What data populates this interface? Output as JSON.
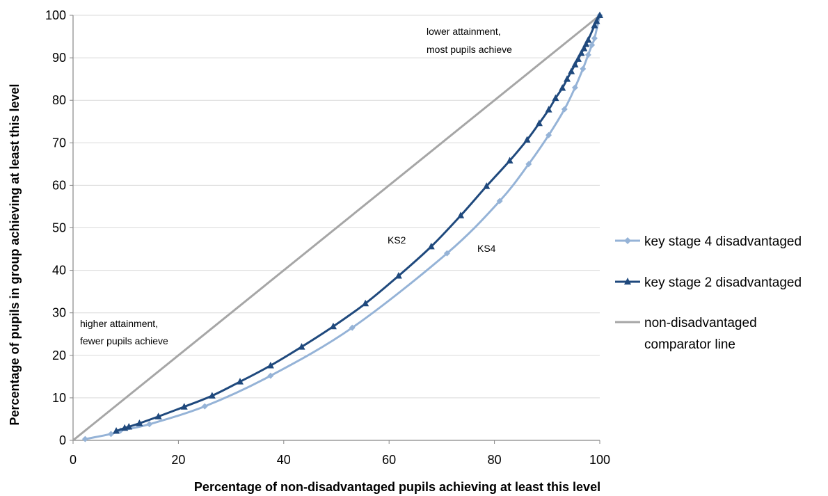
{
  "chart_data": {
    "type": "line",
    "title": "",
    "xlabel": "Percentage of non-disadvantaged pupils achieving at least this level",
    "ylabel": "Percentage of pupils in group achieving at least this level",
    "xlim": [
      0,
      100
    ],
    "ylim": [
      0,
      100
    ],
    "x_ticks": [
      "0",
      "20",
      "40",
      "60",
      "80",
      "100"
    ],
    "y_ticks": [
      "0",
      "10",
      "20",
      "30",
      "40",
      "50",
      "60",
      "70",
      "80",
      "90",
      "100"
    ],
    "grid": "horizontal",
    "legend_position": "right",
    "series": [
      {
        "name": "key stage 4 disadvantaged",
        "color": "#95B3D7",
        "marker": "diamond",
        "points": [
          [
            2.3,
            0.3
          ],
          [
            7.2,
            1.5
          ],
          [
            9.0,
            2.3
          ],
          [
            14.5,
            3.8
          ],
          [
            25.0,
            8.0
          ],
          [
            37.5,
            15.2
          ],
          [
            53.0,
            26.5
          ],
          [
            71.0,
            44.0
          ],
          [
            81.0,
            56.3
          ],
          [
            86.5,
            65.0
          ],
          [
            90.3,
            71.8
          ],
          [
            93.3,
            77.9
          ],
          [
            95.3,
            83.0
          ],
          [
            96.8,
            87.4
          ],
          [
            97.8,
            90.7
          ],
          [
            98.5,
            93.0
          ],
          [
            99.0,
            94.6
          ],
          [
            100,
            100
          ]
        ]
      },
      {
        "name": "key stage 2 disadvantaged",
        "color": "#1F497D",
        "marker": "triangle",
        "points": [
          [
            8.2,
            2.2
          ],
          [
            9.8,
            2.9
          ],
          [
            10.6,
            3.2
          ],
          [
            12.6,
            4.0
          ],
          [
            16.2,
            5.6
          ],
          [
            21.1,
            7.9
          ],
          [
            26.4,
            10.5
          ],
          [
            31.7,
            13.8
          ],
          [
            37.5,
            17.6
          ],
          [
            43.4,
            22.0
          ],
          [
            49.4,
            26.8
          ],
          [
            55.5,
            32.2
          ],
          [
            61.8,
            38.7
          ],
          [
            68.0,
            45.6
          ],
          [
            73.6,
            52.9
          ],
          [
            78.5,
            59.8
          ],
          [
            82.9,
            65.8
          ],
          [
            86.2,
            70.7
          ],
          [
            88.5,
            74.6
          ],
          [
            90.3,
            77.8
          ],
          [
            91.6,
            80.5
          ],
          [
            92.9,
            82.9
          ],
          [
            93.8,
            85.0
          ],
          [
            94.6,
            86.8
          ],
          [
            95.3,
            88.4
          ],
          [
            95.9,
            89.7
          ],
          [
            96.5,
            91.1
          ],
          [
            97.0,
            92.2
          ],
          [
            97.4,
            93.2
          ],
          [
            97.8,
            94.2
          ],
          [
            99.0,
            97.6
          ],
          [
            99.4,
            98.6
          ],
          [
            100,
            100
          ]
        ]
      },
      {
        "name": "non-disadvantaged comparator line",
        "color": "#A6A6A6",
        "marker": "none",
        "points": [
          [
            0,
            0
          ],
          [
            100,
            100
          ]
        ]
      }
    ],
    "annotations": {
      "top_right_line1": "lower attainment,",
      "top_right_line2": "most pupils achieve",
      "bottom_left_line1": "higher attainment,",
      "bottom_left_line2": "fewer pupils achieve",
      "ks2_label": "KS2",
      "ks4_label": "KS4"
    },
    "legend_labels": {
      "ks4": "key stage 4 disadvantaged",
      "ks2": "key stage 2 disadvantaged",
      "comparator_line1": "non-disadvantaged",
      "comparator_line2": "comparator line"
    }
  }
}
